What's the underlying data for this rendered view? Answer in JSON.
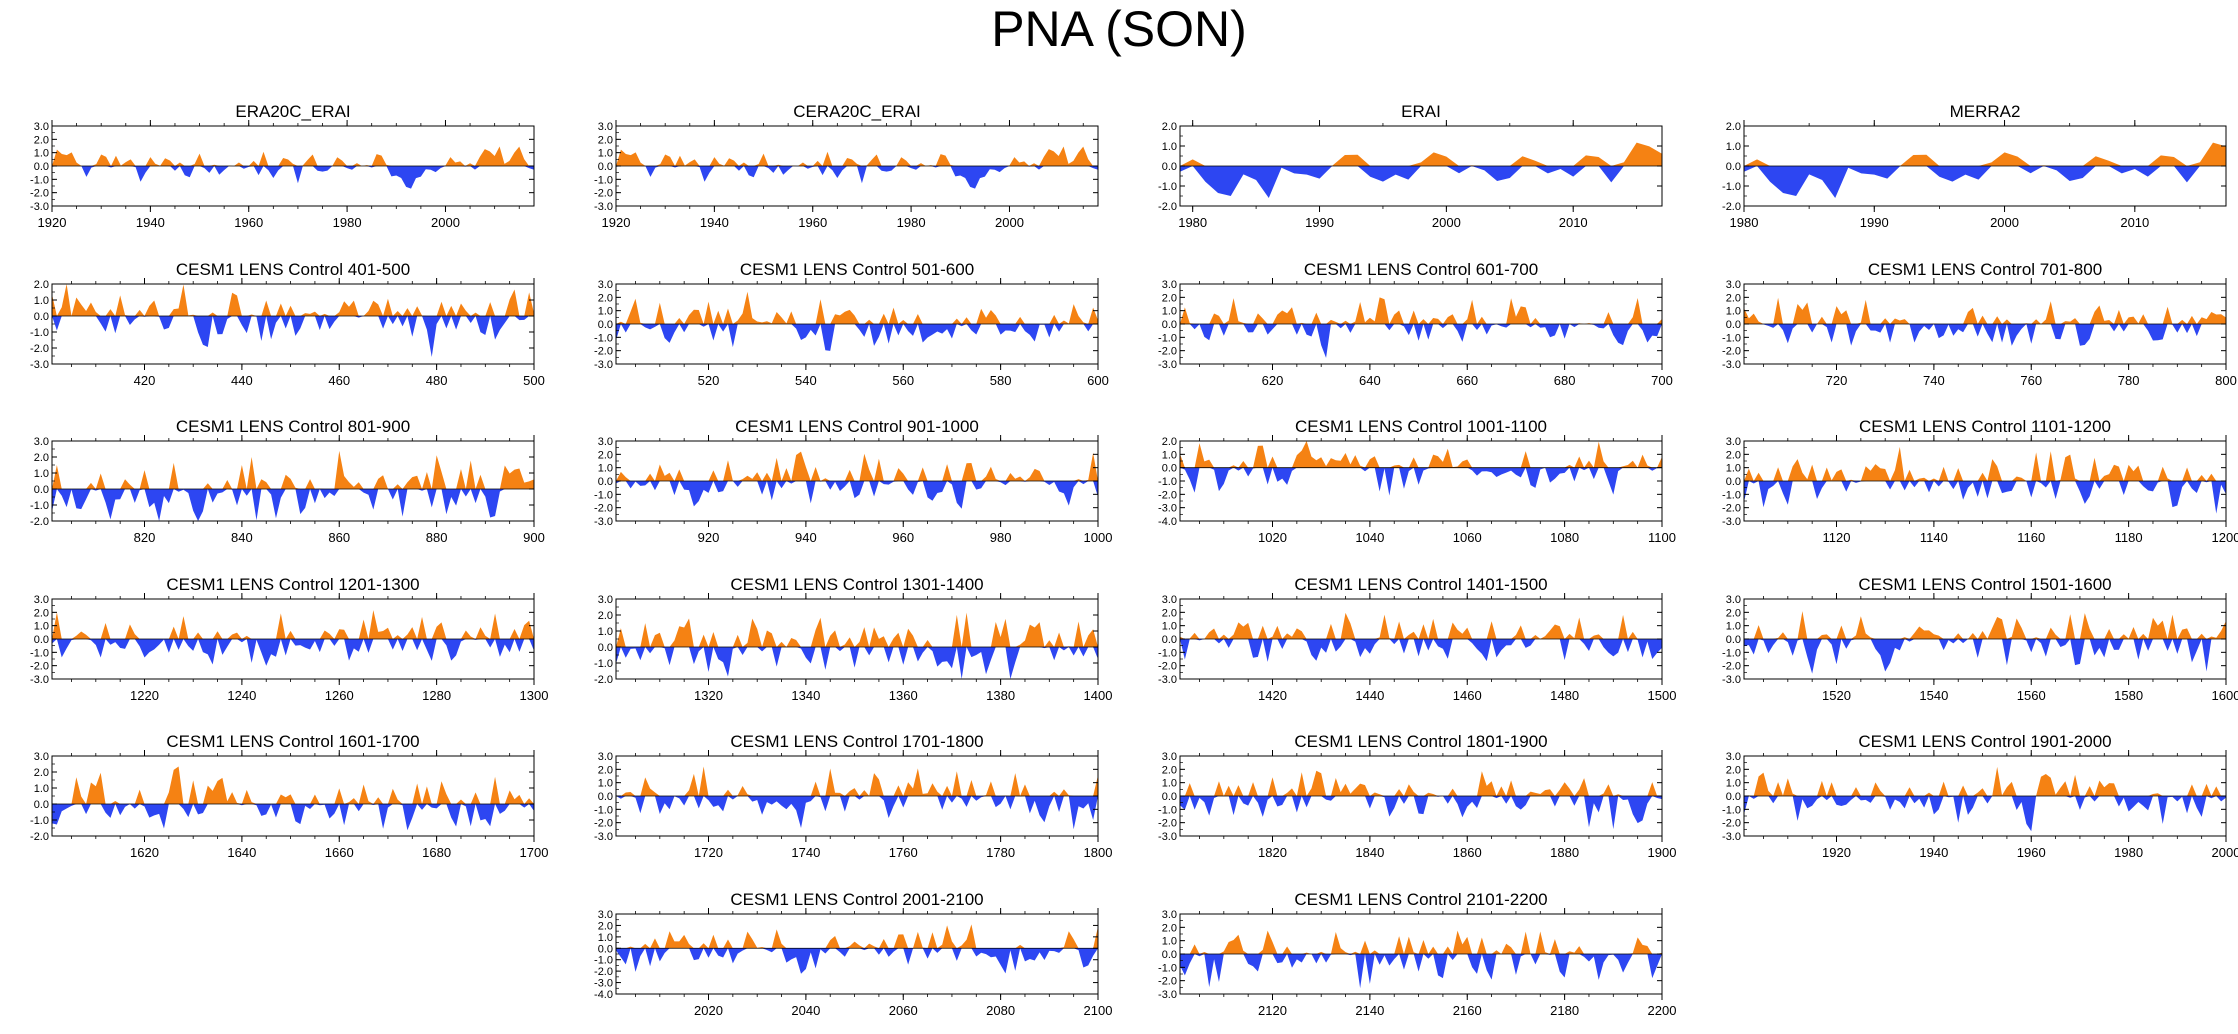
{
  "title": "PNA (SON)",
  "colors": {
    "positive": "#f58213",
    "negative": "#2d46f2",
    "axis": "#000000"
  },
  "chart_data": [
    {
      "type": "area",
      "title": "ERA20C_ERAI",
      "xlim": [
        1920,
        2018
      ],
      "ylim": [
        -3.0,
        3.0
      ],
      "ytick_step": 1.0,
      "xticks": [
        1920,
        1940,
        1960,
        1980,
        2000
      ],
      "series_ref": "smooth",
      "seed": 11
    },
    {
      "type": "area",
      "title": "CERA20C_ERAI",
      "xlim": [
        1920,
        2018
      ],
      "ylim": [
        -3.0,
        3.0
      ],
      "ytick_step": 1.0,
      "xticks": [
        1920,
        1940,
        1960,
        1980,
        2000
      ],
      "series_ref": "smooth",
      "seed": 11
    },
    {
      "type": "area",
      "title": "ERAI",
      "xlim": [
        1979,
        2017
      ],
      "ylim": [
        -2.0,
        2.0
      ],
      "ytick_step": 1.0,
      "xticks": [
        1980,
        1990,
        2000,
        2010
      ],
      "series_ref": "short",
      "seed": 3
    },
    {
      "type": "area",
      "title": "MERRA2",
      "xlim": [
        1980,
        2017
      ],
      "ylim": [
        -2.0,
        2.0
      ],
      "ytick_step": 1.0,
      "xticks": [
        1980,
        1990,
        2000,
        2010
      ],
      "series_ref": "short",
      "seed": 3
    },
    {
      "type": "area",
      "title": "CESM1 LENS Control 401-500",
      "xlim": [
        401,
        500
      ],
      "ylim": [
        -3.0,
        2.0
      ],
      "ytick_step": 1.0,
      "xticks": [
        420,
        440,
        460,
        480,
        500
      ],
      "seed": 401
    },
    {
      "type": "area",
      "title": "CESM1 LENS Control 501-600",
      "xlim": [
        501,
        600
      ],
      "ylim": [
        -3.0,
        3.0
      ],
      "ytick_step": 1.0,
      "xticks": [
        520,
        540,
        560,
        580,
        600
      ],
      "seed": 501
    },
    {
      "type": "area",
      "title": "CESM1 LENS Control 601-700",
      "xlim": [
        601,
        700
      ],
      "ylim": [
        -3.0,
        3.0
      ],
      "ytick_step": 1.0,
      "xticks": [
        620,
        640,
        660,
        680,
        700
      ],
      "seed": 601
    },
    {
      "type": "area",
      "title": "CESM1 LENS Control 701-800",
      "xlim": [
        701,
        800
      ],
      "ylim": [
        -3.0,
        3.0
      ],
      "ytick_step": 1.0,
      "xticks": [
        720,
        740,
        760,
        780,
        800
      ],
      "seed": 701
    },
    {
      "type": "area",
      "title": "CESM1 LENS Control 801-900",
      "xlim": [
        801,
        900
      ],
      "ylim": [
        -2.0,
        3.0
      ],
      "ytick_step": 1.0,
      "xticks": [
        820,
        840,
        860,
        880,
        900
      ],
      "seed": 801
    },
    {
      "type": "area",
      "title": "CESM1 LENS Control 901-1000",
      "xlim": [
        901,
        1000
      ],
      "ylim": [
        -3.0,
        3.0
      ],
      "ytick_step": 1.0,
      "xticks": [
        920,
        940,
        960,
        980,
        1000
      ],
      "seed": 901
    },
    {
      "type": "area",
      "title": "CESM1 LENS Control 1001-1100",
      "xlim": [
        1001,
        1100
      ],
      "ylim": [
        -4.0,
        2.0
      ],
      "ytick_step": 1.0,
      "xticks": [
        1020,
        1040,
        1060,
        1080,
        1100
      ],
      "seed": 1001
    },
    {
      "type": "area",
      "title": "CESM1 LENS Control 1101-1200",
      "xlim": [
        1101,
        1200
      ],
      "ylim": [
        -3.0,
        3.0
      ],
      "ytick_step": 1.0,
      "xticks": [
        1120,
        1140,
        1160,
        1180,
        1200
      ],
      "seed": 1101
    },
    {
      "type": "area",
      "title": "CESM1 LENS Control 1201-1300",
      "xlim": [
        1201,
        1300
      ],
      "ylim": [
        -3.0,
        3.0
      ],
      "ytick_step": 1.0,
      "xticks": [
        1220,
        1240,
        1260,
        1280,
        1300
      ],
      "seed": 1201
    },
    {
      "type": "area",
      "title": "CESM1 LENS Control 1301-1400",
      "xlim": [
        1301,
        1400
      ],
      "ylim": [
        -2.0,
        3.0
      ],
      "ytick_step": 1.0,
      "xticks": [
        1320,
        1340,
        1360,
        1380,
        1400
      ],
      "seed": 1301
    },
    {
      "type": "area",
      "title": "CESM1 LENS Control 1401-1500",
      "xlim": [
        1401,
        1500
      ],
      "ylim": [
        -3.0,
        3.0
      ],
      "ytick_step": 1.0,
      "xticks": [
        1420,
        1440,
        1460,
        1480,
        1500
      ],
      "seed": 1401
    },
    {
      "type": "area",
      "title": "CESM1 LENS Control 1501-1600",
      "xlim": [
        1501,
        1600
      ],
      "ylim": [
        -3.0,
        3.0
      ],
      "ytick_step": 1.0,
      "xticks": [
        1520,
        1540,
        1560,
        1580,
        1600
      ],
      "seed": 1501
    },
    {
      "type": "area",
      "title": "CESM1 LENS Control 1601-1700",
      "xlim": [
        1601,
        1700
      ],
      "ylim": [
        -2.0,
        3.0
      ],
      "ytick_step": 1.0,
      "xticks": [
        1620,
        1640,
        1660,
        1680,
        1700
      ],
      "seed": 1601
    },
    {
      "type": "area",
      "title": "CESM1 LENS Control 1701-1800",
      "xlim": [
        1701,
        1800
      ],
      "ylim": [
        -3.0,
        3.0
      ],
      "ytick_step": 1.0,
      "xticks": [
        1720,
        1740,
        1760,
        1780,
        1800
      ],
      "seed": 1701
    },
    {
      "type": "area",
      "title": "CESM1 LENS Control 1801-1900",
      "xlim": [
        1801,
        1900
      ],
      "ylim": [
        -3.0,
        3.0
      ],
      "ytick_step": 1.0,
      "xticks": [
        1820,
        1840,
        1860,
        1880,
        1900
      ],
      "seed": 1801
    },
    {
      "type": "area",
      "title": "CESM1 LENS Control 1901-2000",
      "xlim": [
        1901,
        2000
      ],
      "ylim": [
        -3.0,
        3.0
      ],
      "ytick_step": 1.0,
      "xticks": [
        1920,
        1940,
        1960,
        1980,
        2000
      ],
      "seed": 1901
    },
    {
      "type": "area",
      "title": "CESM1 LENS Control 2001-2100",
      "xlim": [
        2001,
        2100
      ],
      "ylim": [
        -4.0,
        3.0
      ],
      "ytick_step": 1.0,
      "xticks": [
        2020,
        2040,
        2060,
        2080,
        2100
      ],
      "seed": 2001
    },
    {
      "type": "area",
      "title": "CESM1 LENS Control 2101-2200",
      "xlim": [
        2101,
        2200
      ],
      "ylim": [
        -3.0,
        3.0
      ],
      "ytick_step": 1.0,
      "xticks": [
        2120,
        2140,
        2160,
        2180,
        2200
      ],
      "seed": 2101
    }
  ]
}
